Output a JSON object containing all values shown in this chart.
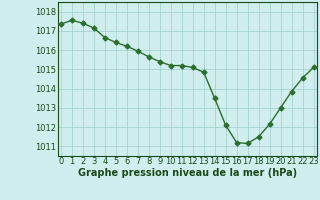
{
  "x": [
    0,
    1,
    2,
    3,
    4,
    5,
    6,
    7,
    8,
    9,
    10,
    11,
    12,
    13,
    14,
    15,
    16,
    17,
    18,
    19,
    20,
    21,
    22,
    23
  ],
  "y": [
    1017.35,
    1017.55,
    1017.4,
    1017.15,
    1016.65,
    1016.4,
    1016.2,
    1015.95,
    1015.65,
    1015.4,
    1015.2,
    1015.2,
    1015.1,
    1014.85,
    1013.5,
    1012.1,
    1011.2,
    1011.15,
    1011.5,
    1012.15,
    1013.0,
    1013.85,
    1014.55,
    1015.1
  ],
  "line_color": "#2d6e2d",
  "marker": "D",
  "markersize": 2.5,
  "linewidth": 1.0,
  "bg_color": "#d0eeee",
  "grid_color": "#a0cccc",
  "xlabel": "Graphe pression niveau de la mer (hPa)",
  "xlabel_color": "#1a4a1a",
  "xlabel_fontsize": 7,
  "tick_color": "#1a4a1a",
  "tick_fontsize": 6,
  "ylim": [
    1010.5,
    1018.5
  ],
  "yticks": [
    1011,
    1012,
    1013,
    1014,
    1015,
    1016,
    1017,
    1018
  ],
  "xticks": [
    0,
    1,
    2,
    3,
    4,
    5,
    6,
    7,
    8,
    9,
    10,
    11,
    12,
    13,
    14,
    15,
    16,
    17,
    18,
    19,
    20,
    21,
    22,
    23
  ],
  "xlim": [
    -0.3,
    23.3
  ]
}
